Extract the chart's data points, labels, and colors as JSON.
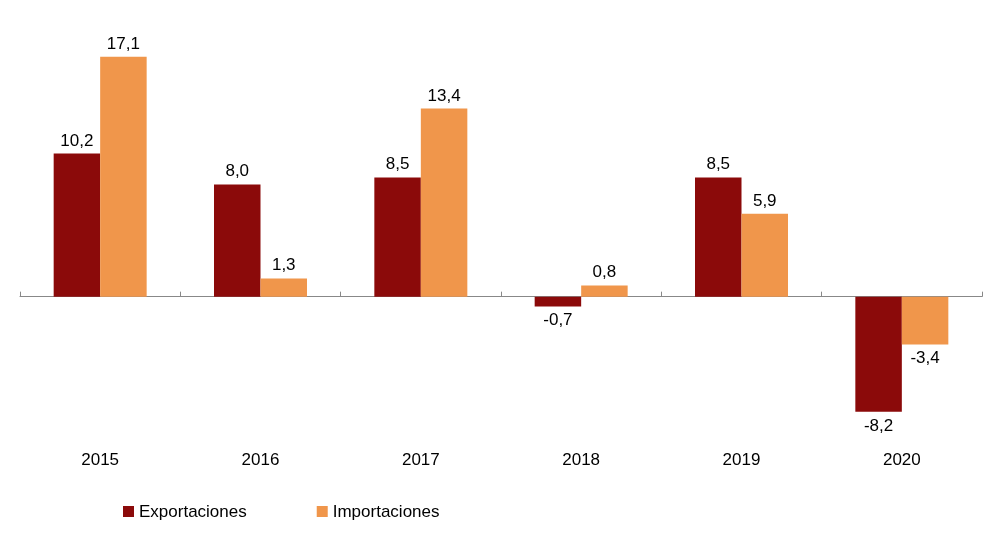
{
  "chart_data": {
    "type": "bar",
    "categories": [
      "2015",
      "2016",
      "2017",
      "2018",
      "2019",
      "2020"
    ],
    "series": [
      {
        "name": "Exportaciones",
        "color": "#8b0a0a",
        "values": [
          10.2,
          8.0,
          8.5,
          -0.7,
          8.5,
          -8.2
        ],
        "value_labels": [
          "10,2",
          "8,0",
          "8,5",
          "-0,7",
          "8,5",
          "-8,2"
        ]
      },
      {
        "name": "Importaciones",
        "color": "#f0964b",
        "values": [
          17.1,
          1.3,
          13.4,
          0.8,
          5.9,
          -3.4
        ],
        "value_labels": [
          "17,1",
          "1,3",
          "13,4",
          "0,8",
          "5,9",
          "-3,4"
        ]
      }
    ],
    "legend": "bottom left",
    "tick_labels": "x"
  }
}
